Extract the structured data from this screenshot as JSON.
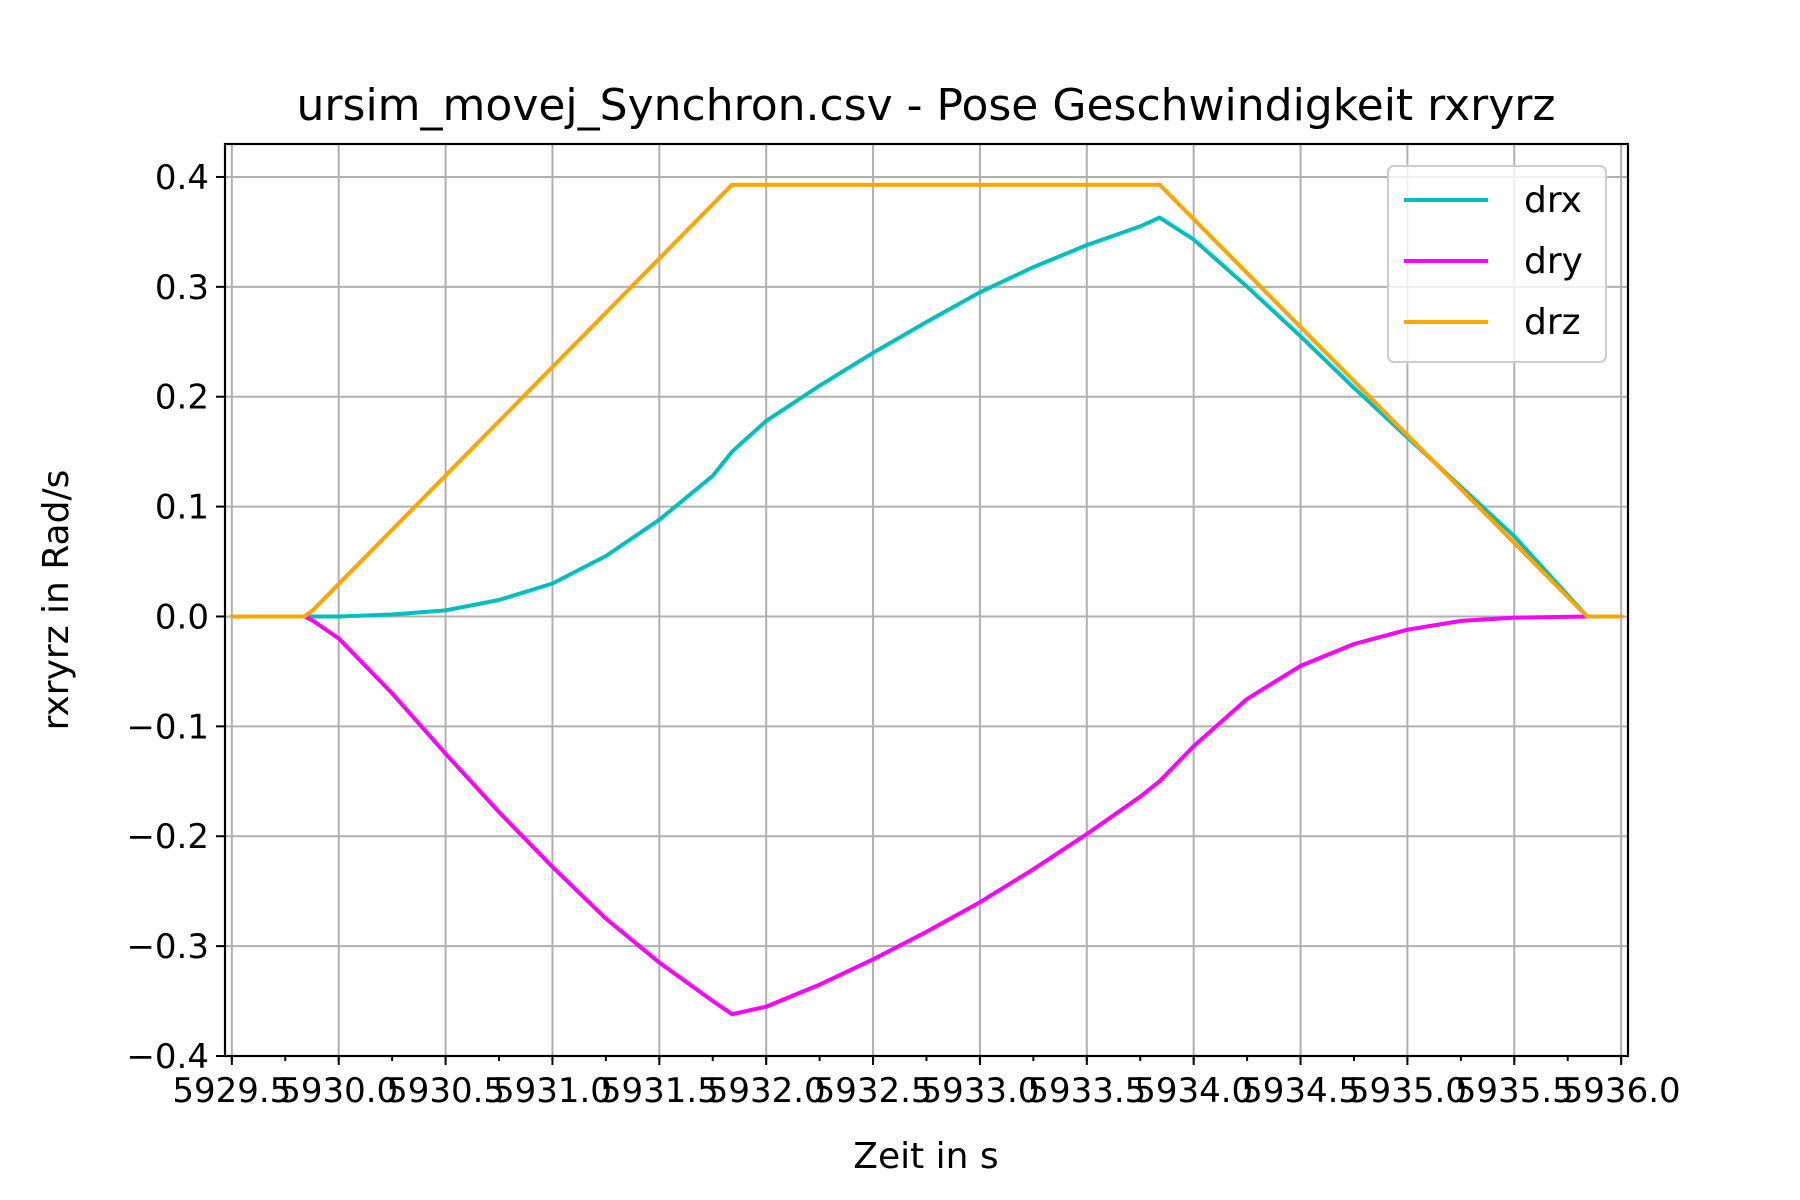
{
  "chart_data": {
    "type": "line",
    "title": "ursim_movej_Synchron.csv - Pose Geschwindigkeit rxryrz",
    "xlabel": "Zeit in s",
    "ylabel": "rxryrz in Rad/s",
    "xlim": [
      5929.468,
      5936.032
    ],
    "ylim": [
      -0.4,
      0.43
    ],
    "x_ticks": [
      {
        "value": 5929.5,
        "label": "5929.5"
      },
      {
        "value": 5930.0,
        "label": "5930.0"
      },
      {
        "value": 5930.5,
        "label": "5930.5"
      },
      {
        "value": 5931.0,
        "label": "5931.0"
      },
      {
        "value": 5931.5,
        "label": "5931.5"
      },
      {
        "value": 5932.0,
        "label": "5932.0"
      },
      {
        "value": 5932.5,
        "label": "5932.5"
      },
      {
        "value": 5933.0,
        "label": "5933.0"
      },
      {
        "value": 5933.5,
        "label": "5933.5"
      },
      {
        "value": 5934.0,
        "label": "5934.0"
      },
      {
        "value": 5934.5,
        "label": "5934.5"
      },
      {
        "value": 5935.0,
        "label": "5935.0"
      },
      {
        "value": 5935.5,
        "label": "5935.5"
      },
      {
        "value": 5936.0,
        "label": "5936.0"
      }
    ],
    "x_minor_step": 0.25,
    "y_ticks": [
      {
        "value": 0.4,
        "label": "0.4"
      },
      {
        "value": 0.3,
        "label": "0.3"
      },
      {
        "value": 0.2,
        "label": "0.2"
      },
      {
        "value": 0.1,
        "label": "0.1"
      },
      {
        "value": 0.0,
        "label": "0.0"
      },
      {
        "value": -0.1,
        "label": "−0.1"
      },
      {
        "value": -0.2,
        "label": "−0.2"
      },
      {
        "value": -0.3,
        "label": "−0.3"
      },
      {
        "value": -0.4,
        "label": "−0.4"
      }
    ],
    "grid": true,
    "legend_position": "top-right",
    "series": [
      {
        "name": "drx",
        "color": "#00bfbf",
        "x": [
          5929.5,
          5929.84,
          5930.0,
          5930.25,
          5930.5,
          5930.75,
          5931.0,
          5931.25,
          5931.5,
          5931.75,
          5931.84,
          5932.0,
          5932.25,
          5932.5,
          5932.75,
          5933.0,
          5933.25,
          5933.5,
          5933.75,
          5933.84,
          5934.0,
          5934.25,
          5934.5,
          5934.75,
          5935.0,
          5935.25,
          5935.5,
          5935.84,
          5936.0
        ],
        "y": [
          0.0,
          0.0,
          0.0,
          0.0018,
          0.0055,
          0.015,
          0.03,
          0.055,
          0.088,
          0.128,
          0.15,
          0.178,
          0.21,
          0.24,
          0.268,
          0.295,
          0.318,
          0.338,
          0.355,
          0.363,
          0.343,
          0.3,
          0.255,
          0.208,
          0.163,
          0.118,
          0.073,
          0.0,
          0.0
        ]
      },
      {
        "name": "dry",
        "color": "#ff00ff",
        "x": [
          5929.5,
          5929.84,
          5929.88,
          5930.0,
          5930.25,
          5930.5,
          5930.75,
          5931.0,
          5931.25,
          5931.5,
          5931.75,
          5931.84,
          5932.0,
          5932.25,
          5932.5,
          5932.75,
          5933.0,
          5933.25,
          5933.5,
          5933.75,
          5933.84,
          5934.0,
          5934.25,
          5934.5,
          5934.75,
          5935.0,
          5935.25,
          5935.5,
          5935.84,
          5936.0
        ],
        "y": [
          0.0,
          0.0,
          -0.004,
          -0.02,
          -0.07,
          -0.125,
          -0.178,
          -0.228,
          -0.275,
          -0.315,
          -0.35,
          -0.362,
          -0.355,
          -0.335,
          -0.312,
          -0.287,
          -0.26,
          -0.23,
          -0.198,
          -0.164,
          -0.15,
          -0.118,
          -0.075,
          -0.045,
          -0.025,
          -0.012,
          -0.004,
          -0.001,
          0.0,
          0.0
        ]
      },
      {
        "name": "drz",
        "color": "#ffa500",
        "x": [
          5929.5,
          5929.84,
          5929.88,
          5931.84,
          5933.84,
          5935.84,
          5936.0
        ],
        "y": [
          0.0,
          0.0,
          0.006,
          0.393,
          0.393,
          0.0,
          0.0
        ]
      }
    ]
  }
}
